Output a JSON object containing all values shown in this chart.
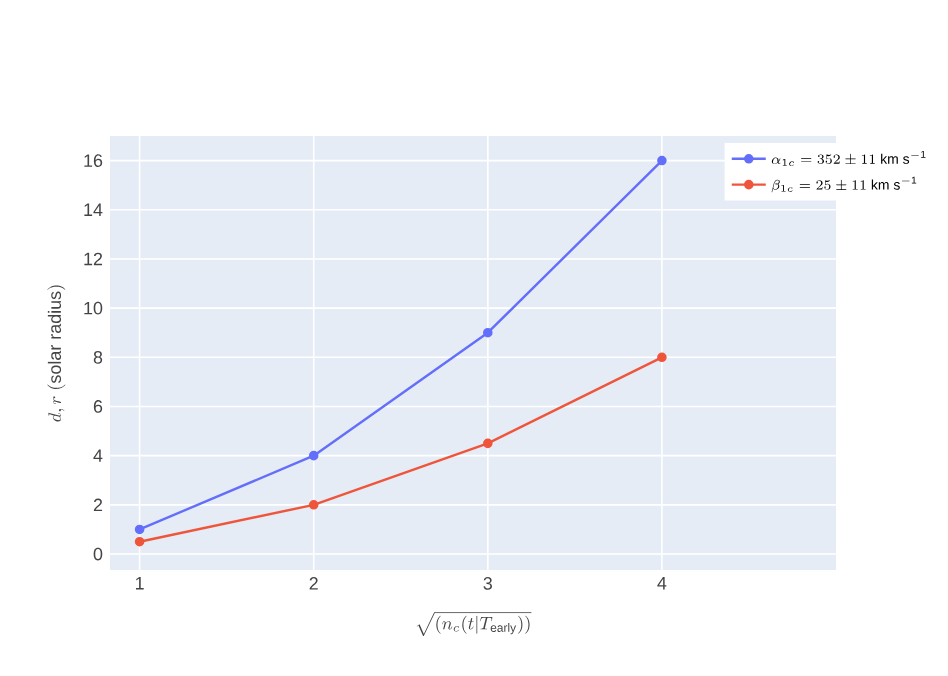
{
  "chart_data": {
    "type": "line",
    "xlabel": "\\sqrt{(n_c(t|T_{\\mathrm{early}}))}",
    "ylabel": "d, r\\ \\mathrm{(solar\\ radius)}",
    "x": [
      1,
      2,
      3,
      4
    ],
    "series": [
      {
        "name": "\\alpha_{1c} = 352 \\pm 11\\ \\mathrm{km\\ s^{-1}}",
        "color": "#636efa",
        "values": [
          1,
          4,
          9,
          16
        ]
      },
      {
        "name": "\\beta_{1c} = 25 \\pm 11\\ \\mathrm{km\\ s^{-1}}",
        "color": "#ef553b",
        "values": [
          0.5,
          2,
          4.5,
          8
        ]
      }
    ],
    "xlim": [
      0.83,
      5
    ],
    "ylim": [
      -0.65,
      17
    ],
    "xticks": [
      1,
      2,
      3,
      4
    ],
    "yticks": [
      0,
      2,
      4,
      6,
      8,
      10,
      12,
      14,
      16
    ],
    "grid": true,
    "legend": "top right",
    "marker": "circle",
    "line_style": "solid"
  }
}
